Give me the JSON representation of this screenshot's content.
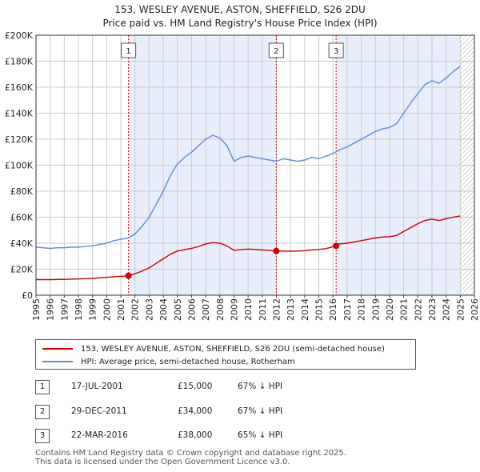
{
  "title_line1": "153, WESLEY AVENUE, ASTON, SHEFFIELD, S26 2DU",
  "title_line2": "Price paid vs. HM Land Registry's House Price Index (HPI)",
  "colors": {
    "price": "#cc0000",
    "hpi": "#5a8ed0",
    "shade": "#e8eefb",
    "grid": "#cccccc",
    "marker_line": "#cc0000"
  },
  "chart_data": {
    "type": "line",
    "x_range": [
      1995,
      2026
    ],
    "ylim": [
      0,
      200000
    ],
    "x_ticks": [
      1995,
      1996,
      1997,
      1998,
      1999,
      2000,
      2001,
      2002,
      2003,
      2004,
      2005,
      2006,
      2007,
      2008,
      2009,
      2010,
      2011,
      2012,
      2013,
      2014,
      2015,
      2016,
      2017,
      2018,
      2019,
      2020,
      2021,
      2022,
      2023,
      2024,
      2025,
      2026
    ],
    "y_ticks": [
      0,
      20000,
      40000,
      60000,
      80000,
      100000,
      120000,
      140000,
      160000,
      180000,
      200000
    ],
    "y_tick_labels": [
      "£0",
      "£20K",
      "£40K",
      "£60K",
      "£80K",
      "£100K",
      "£120K",
      "£140K",
      "£160K",
      "£180K",
      "£200K"
    ],
    "hatched_after": 2025.0,
    "series": [
      {
        "name": "HPI: Average price, semi-detached house, Rotherham",
        "color": "#5a8ed0",
        "points": [
          [
            1995.0,
            37000
          ],
          [
            1995.5,
            36500
          ],
          [
            1996.0,
            36000
          ],
          [
            1996.5,
            36500
          ],
          [
            1997.0,
            36500
          ],
          [
            1997.5,
            37000
          ],
          [
            1998.0,
            37000
          ],
          [
            1998.5,
            37500
          ],
          [
            1999.0,
            38000
          ],
          [
            1999.5,
            39000
          ],
          [
            2000.0,
            40000
          ],
          [
            2000.5,
            42000
          ],
          [
            2001.0,
            43000
          ],
          [
            2001.5,
            44000
          ],
          [
            2002.0,
            47000
          ],
          [
            2002.5,
            53000
          ],
          [
            2003.0,
            60000
          ],
          [
            2003.5,
            70000
          ],
          [
            2004.0,
            80000
          ],
          [
            2004.5,
            92000
          ],
          [
            2005.0,
            101000
          ],
          [
            2005.5,
            106000
          ],
          [
            2006.0,
            110000
          ],
          [
            2006.5,
            115000
          ],
          [
            2007.0,
            120000
          ],
          [
            2007.5,
            123000
          ],
          [
            2008.0,
            121000
          ],
          [
            2008.5,
            115000
          ],
          [
            2009.0,
            103000
          ],
          [
            2009.5,
            106000
          ],
          [
            2010.0,
            107000
          ],
          [
            2010.5,
            106000
          ],
          [
            2011.0,
            105000
          ],
          [
            2011.5,
            104000
          ],
          [
            2012.0,
            103000
          ],
          [
            2012.5,
            105000
          ],
          [
            2013.0,
            104000
          ],
          [
            2013.5,
            103000
          ],
          [
            2014.0,
            104000
          ],
          [
            2014.5,
            106000
          ],
          [
            2015.0,
            105000
          ],
          [
            2015.5,
            107000
          ],
          [
            2016.0,
            109000
          ],
          [
            2016.5,
            112000
          ],
          [
            2017.0,
            114000
          ],
          [
            2017.5,
            117000
          ],
          [
            2018.0,
            120000
          ],
          [
            2018.5,
            123000
          ],
          [
            2019.0,
            126000
          ],
          [
            2019.5,
            128000
          ],
          [
            2020.0,
            129000
          ],
          [
            2020.5,
            132000
          ],
          [
            2021.0,
            140000
          ],
          [
            2021.5,
            148000
          ],
          [
            2022.0,
            155000
          ],
          [
            2022.5,
            162000
          ],
          [
            2023.0,
            165000
          ],
          [
            2023.5,
            163000
          ],
          [
            2024.0,
            167000
          ],
          [
            2024.5,
            172000
          ],
          [
            2025.0,
            176000
          ]
        ]
      },
      {
        "name": "153, WESLEY AVENUE, ASTON, SHEFFIELD, S26 2DU (semi-detached house)",
        "color": "#cc0000",
        "points": [
          [
            1995.0,
            12000
          ],
          [
            1996.0,
            12000
          ],
          [
            1997.0,
            12200
          ],
          [
            1998.0,
            12500
          ],
          [
            1999.0,
            13000
          ],
          [
            2000.0,
            13800
          ],
          [
            2001.0,
            14500
          ],
          [
            2001.54,
            15000
          ],
          [
            2002.0,
            16500
          ],
          [
            2002.5,
            18500
          ],
          [
            2003.0,
            21000
          ],
          [
            2003.5,
            24500
          ],
          [
            2004.0,
            28000
          ],
          [
            2004.5,
            31500
          ],
          [
            2005.0,
            34000
          ],
          [
            2005.5,
            35000
          ],
          [
            2006.0,
            36000
          ],
          [
            2006.5,
            37500
          ],
          [
            2007.0,
            39500
          ],
          [
            2007.5,
            40500
          ],
          [
            2008.0,
            40000
          ],
          [
            2008.5,
            38000
          ],
          [
            2009.0,
            34500
          ],
          [
            2009.5,
            35000
          ],
          [
            2010.0,
            35500
          ],
          [
            2010.5,
            35200
          ],
          [
            2011.0,
            34800
          ],
          [
            2011.5,
            34500
          ],
          [
            2011.99,
            34000
          ],
          [
            2012.5,
            34000
          ],
          [
            2013.0,
            33800
          ],
          [
            2013.5,
            34000
          ],
          [
            2014.0,
            34200
          ],
          [
            2014.5,
            34800
          ],
          [
            2015.0,
            35200
          ],
          [
            2015.5,
            35800
          ],
          [
            2016.22,
            38000
          ],
          [
            2016.5,
            39500
          ],
          [
            2017.0,
            40000
          ],
          [
            2017.5,
            41000
          ],
          [
            2018.0,
            42000
          ],
          [
            2018.5,
            43000
          ],
          [
            2019.0,
            44000
          ],
          [
            2019.5,
            44800
          ],
          [
            2020.0,
            45000
          ],
          [
            2020.5,
            46000
          ],
          [
            2021.0,
            49000
          ],
          [
            2021.5,
            52000
          ],
          [
            2022.0,
            55000
          ],
          [
            2022.5,
            57500
          ],
          [
            2023.0,
            58500
          ],
          [
            2023.5,
            57500
          ],
          [
            2024.0,
            58800
          ],
          [
            2024.5,
            60000
          ],
          [
            2025.0,
            61000
          ]
        ]
      }
    ],
    "sales": [
      {
        "label": "1",
        "x": 2001.54,
        "value": 15000
      },
      {
        "label": "2",
        "x": 2011.99,
        "value": 34000
      },
      {
        "label": "3",
        "x": 2016.22,
        "value": 38000
      }
    ]
  },
  "legend": {
    "price_label": "153, WESLEY AVENUE, ASTON, SHEFFIELD, S26 2DU (semi-detached house)",
    "hpi_label": "HPI: Average price, semi-detached house, Rotherham"
  },
  "transactions": [
    {
      "num": "1",
      "date": "17-JUL-2001",
      "price": "£15,000",
      "hpi": "67% ↓ HPI"
    },
    {
      "num": "2",
      "date": "29-DEC-2011",
      "price": "£34,000",
      "hpi": "67% ↓ HPI"
    },
    {
      "num": "3",
      "date": "22-MAR-2016",
      "price": "£38,000",
      "hpi": "65% ↓ HPI"
    }
  ],
  "footer_line1": "Contains HM Land Registry data © Crown copyright and database right 2025.",
  "footer_line2": "This data is licensed under the Open Government Licence v3.0."
}
